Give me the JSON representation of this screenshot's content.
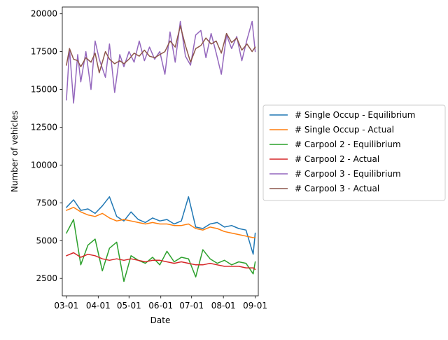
{
  "chart_data": {
    "type": "line",
    "title": "",
    "xlabel": "Date",
    "ylabel": "Number of vehicles",
    "x_range": [
      "2020-02-26",
      "2020-09-04"
    ],
    "ylim": [
      1350,
      20450
    ],
    "x_ticks": [
      {
        "date": "2020-03-01",
        "label": "03-01"
      },
      {
        "date": "2020-04-01",
        "label": "04-01"
      },
      {
        "date": "2020-05-01",
        "label": "05-01"
      },
      {
        "date": "2020-06-01",
        "label": "06-01"
      },
      {
        "date": "2020-07-01",
        "label": "07-01"
      },
      {
        "date": "2020-08-01",
        "label": "08-01"
      },
      {
        "date": "2020-09-01",
        "label": "09-01"
      }
    ],
    "y_ticks": [
      {
        "value": 2500,
        "label": "2500"
      },
      {
        "value": 5000,
        "label": "5000"
      },
      {
        "value": 7500,
        "label": "7500"
      },
      {
        "value": 10000,
        "label": "10000"
      },
      {
        "value": 12500,
        "label": "12500"
      },
      {
        "value": 15000,
        "label": "15000"
      },
      {
        "value": 17500,
        "label": "17500"
      },
      {
        "value": 20000,
        "label": "20000"
      }
    ],
    "grid": false,
    "legend_position": "right, outside plot area",
    "series": [
      {
        "name": "# Single Occup - Equilibrium",
        "color": "#1f77b4",
        "x": [
          "2020-03-01",
          "2020-03-08",
          "2020-03-15",
          "2020-03-22",
          "2020-03-29",
          "2020-04-05",
          "2020-04-12",
          "2020-04-19",
          "2020-04-26",
          "2020-05-03",
          "2020-05-10",
          "2020-05-17",
          "2020-05-24",
          "2020-05-31",
          "2020-06-07",
          "2020-06-14",
          "2020-06-21",
          "2020-06-28",
          "2020-07-05",
          "2020-07-12",
          "2020-07-19",
          "2020-07-26",
          "2020-08-02",
          "2020-08-09",
          "2020-08-16",
          "2020-08-23",
          "2020-08-30",
          "2020-09-01"
        ],
        "y": [
          7200,
          7700,
          7000,
          7100,
          6800,
          7300,
          7900,
          6600,
          6300,
          6900,
          6400,
          6200,
          6500,
          6300,
          6400,
          6100,
          6300,
          7900,
          5900,
          5800,
          6100,
          6200,
          5900,
          6000,
          5800,
          5700,
          4100,
          5500
        ]
      },
      {
        "name": "# Single Occup - Actual",
        "color": "#ff7f0e",
        "x": [
          "2020-03-01",
          "2020-03-08",
          "2020-03-15",
          "2020-03-22",
          "2020-03-29",
          "2020-04-05",
          "2020-04-12",
          "2020-04-19",
          "2020-04-26",
          "2020-05-03",
          "2020-05-10",
          "2020-05-17",
          "2020-05-24",
          "2020-05-31",
          "2020-06-07",
          "2020-06-14",
          "2020-06-21",
          "2020-06-28",
          "2020-07-05",
          "2020-07-12",
          "2020-07-19",
          "2020-07-26",
          "2020-08-02",
          "2020-08-09",
          "2020-08-16",
          "2020-08-23",
          "2020-08-30",
          "2020-09-01"
        ],
        "y": [
          7000,
          7200,
          6900,
          6700,
          6600,
          6800,
          6500,
          6300,
          6400,
          6300,
          6200,
          6100,
          6200,
          6100,
          6100,
          6000,
          6000,
          6100,
          5800,
          5700,
          5900,
          5800,
          5600,
          5500,
          5400,
          5300,
          5200,
          5200
        ]
      },
      {
        "name": "# Carpool 2 - Equilibrium",
        "color": "#2ca02c",
        "x": [
          "2020-03-01",
          "2020-03-08",
          "2020-03-15",
          "2020-03-22",
          "2020-03-29",
          "2020-04-05",
          "2020-04-12",
          "2020-04-19",
          "2020-04-26",
          "2020-05-03",
          "2020-05-10",
          "2020-05-17",
          "2020-05-24",
          "2020-05-31",
          "2020-06-07",
          "2020-06-14",
          "2020-06-21",
          "2020-06-28",
          "2020-07-05",
          "2020-07-12",
          "2020-07-19",
          "2020-07-26",
          "2020-08-02",
          "2020-08-09",
          "2020-08-16",
          "2020-08-23",
          "2020-08-30",
          "2020-09-01"
        ],
        "y": [
          5500,
          6400,
          3400,
          4700,
          5100,
          3000,
          4500,
          4900,
          2300,
          4000,
          3700,
          3500,
          3900,
          3400,
          4300,
          3600,
          3900,
          3800,
          2600,
          4400,
          3800,
          3500,
          3700,
          3400,
          3600,
          3500,
          2800,
          3600
        ]
      },
      {
        "name": "# Carpool 2 - Actual",
        "color": "#d62728",
        "x": [
          "2020-03-01",
          "2020-03-08",
          "2020-03-15",
          "2020-03-22",
          "2020-03-29",
          "2020-04-05",
          "2020-04-12",
          "2020-04-19",
          "2020-04-26",
          "2020-05-03",
          "2020-05-10",
          "2020-05-17",
          "2020-05-24",
          "2020-05-31",
          "2020-06-07",
          "2020-06-14",
          "2020-06-21",
          "2020-06-28",
          "2020-07-05",
          "2020-07-12",
          "2020-07-19",
          "2020-07-26",
          "2020-08-02",
          "2020-08-09",
          "2020-08-16",
          "2020-08-23",
          "2020-08-30",
          "2020-09-01"
        ],
        "y": [
          4000,
          4200,
          3900,
          4100,
          4000,
          3800,
          3700,
          3800,
          3700,
          3800,
          3700,
          3600,
          3700,
          3700,
          3600,
          3500,
          3600,
          3500,
          3400,
          3400,
          3500,
          3400,
          3300,
          3300,
          3300,
          3200,
          3200,
          3100
        ]
      },
      {
        "name": "# Carpool 3 - Equilibrium",
        "color": "#9467bd",
        "x": [
          "2020-03-01",
          "2020-03-04",
          "2020-03-08",
          "2020-03-12",
          "2020-03-15",
          "2020-03-20",
          "2020-03-25",
          "2020-03-29",
          "2020-04-02",
          "2020-04-08",
          "2020-04-12",
          "2020-04-17",
          "2020-04-22",
          "2020-04-26",
          "2020-05-01",
          "2020-05-06",
          "2020-05-11",
          "2020-05-16",
          "2020-05-21",
          "2020-05-26",
          "2020-05-31",
          "2020-06-05",
          "2020-06-10",
          "2020-06-15",
          "2020-06-20",
          "2020-06-25",
          "2020-06-30",
          "2020-07-05",
          "2020-07-10",
          "2020-07-15",
          "2020-07-20",
          "2020-07-25",
          "2020-07-30",
          "2020-08-04",
          "2020-08-09",
          "2020-08-14",
          "2020-08-19",
          "2020-08-24",
          "2020-08-29",
          "2020-09-01"
        ],
        "y": [
          14300,
          17700,
          14100,
          17300,
          15500,
          17500,
          15000,
          18200,
          17000,
          15800,
          18000,
          14800,
          17300,
          16500,
          17500,
          16800,
          18200,
          16900,
          17800,
          17000,
          17500,
          16000,
          18800,
          16800,
          19500,
          17200,
          16600,
          18600,
          18900,
          17100,
          18700,
          17400,
          16000,
          18600,
          17700,
          18500,
          16900,
          18300,
          19500,
          17500
        ]
      },
      {
        "name": "# Carpool 3 - Actual",
        "color": "#8c564b",
        "x": [
          "2020-03-01",
          "2020-03-04",
          "2020-03-08",
          "2020-03-12",
          "2020-03-15",
          "2020-03-20",
          "2020-03-25",
          "2020-03-29",
          "2020-04-02",
          "2020-04-08",
          "2020-04-12",
          "2020-04-17",
          "2020-04-22",
          "2020-04-26",
          "2020-05-01",
          "2020-05-06",
          "2020-05-11",
          "2020-05-16",
          "2020-05-21",
          "2020-05-26",
          "2020-05-31",
          "2020-06-05",
          "2020-06-10",
          "2020-06-15",
          "2020-06-20",
          "2020-06-25",
          "2020-06-30",
          "2020-07-05",
          "2020-07-10",
          "2020-07-15",
          "2020-07-20",
          "2020-07-25",
          "2020-07-30",
          "2020-08-04",
          "2020-08-09",
          "2020-08-14",
          "2020-08-19",
          "2020-08-24",
          "2020-08-29",
          "2020-09-01"
        ],
        "y": [
          16600,
          17700,
          17000,
          16900,
          16500,
          17100,
          16800,
          17400,
          16100,
          17500,
          17000,
          16700,
          16900,
          16700,
          17000,
          17400,
          17200,
          17600,
          17200,
          17100,
          17300,
          17500,
          18200,
          17800,
          19200,
          17900,
          16800,
          17700,
          17900,
          18400,
          18000,
          18200,
          17400,
          18700,
          18100,
          18400,
          17600,
          18000,
          17500,
          17800
        ]
      }
    ]
  }
}
